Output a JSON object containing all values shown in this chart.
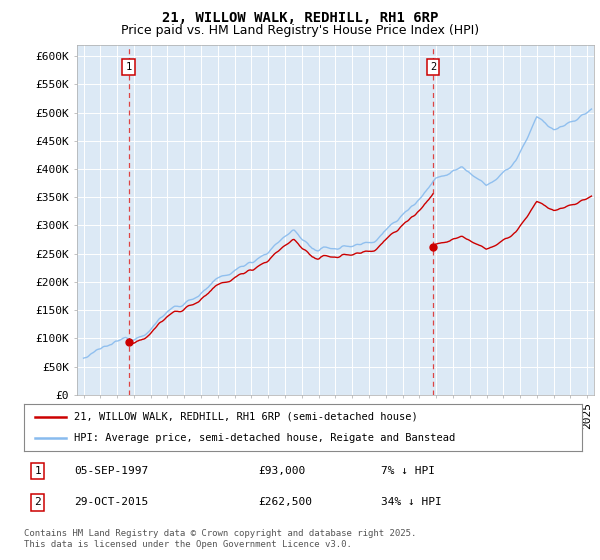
{
  "title": "21, WILLOW WALK, REDHILL, RH1 6RP",
  "subtitle": "Price paid vs. HM Land Registry's House Price Index (HPI)",
  "ylim": [
    0,
    620000
  ],
  "xlim_start": 1994.6,
  "xlim_end": 2025.4,
  "sale1_year": 1997.68,
  "sale1_price": 93000,
  "sale2_year": 2015.83,
  "sale2_price": 262500,
  "hpi_color": "#88bbee",
  "price_color": "#cc0000",
  "dashed_line_color": "#cc0000",
  "background_color": "#dce9f5",
  "legend_label_price": "21, WILLOW WALK, REDHILL, RH1 6RP (semi-detached house)",
  "legend_label_hpi": "HPI: Average price, semi-detached house, Reigate and Banstead",
  "footer": "Contains HM Land Registry data © Crown copyright and database right 2025.\nThis data is licensed under the Open Government Licence v3.0.",
  "title_fontsize": 10,
  "subtitle_fontsize": 9,
  "tick_fontsize": 8
}
